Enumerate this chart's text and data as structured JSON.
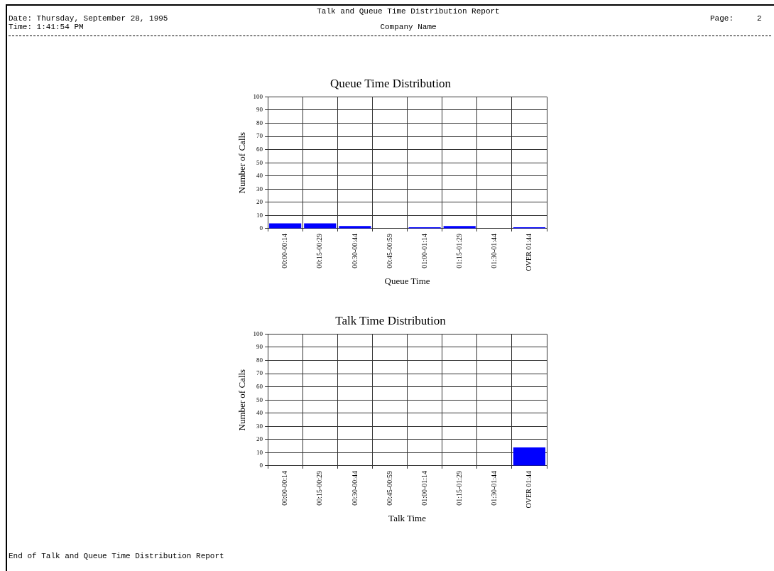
{
  "chart_data": [
    {
      "type": "other",
      "title": "Talk and Queue Time Distribution Report",
      "annotations": [
        "Date: Thursday, September 28, 1995",
        "Time: 1:41:54 PM",
        "Company Name",
        "Page:     2",
        "End of Talk and Queue Time Distribution Report"
      ]
    },
    {
      "type": "bar",
      "title": "Queue Time Distribution",
      "xlabel": "Queue Time",
      "ylabel": "Number of Calls",
      "categories": [
        "00:00-00:14",
        "00:15-00:29",
        "00:30-00:44",
        "00:45-00:59",
        "01:00-01:14",
        "01:15-01:29",
        "01:30-01:44",
        "OVER 01:44"
      ],
      "values": [
        4,
        4,
        2,
        0,
        1,
        2,
        0,
        1
      ],
      "color": "#0000ff",
      "ylim": [
        0,
        100
      ],
      "yticks": [
        0,
        10,
        20,
        30,
        40,
        50,
        60,
        70,
        80,
        90,
        100
      ],
      "grid": true
    },
    {
      "type": "bar",
      "title": "Talk Time Distribution",
      "xlabel": "Talk Time",
      "ylabel": "Number of Calls",
      "categories": [
        "00:00-00:14",
        "00:15-00:29",
        "00:30-00:44",
        "00:45-00:59",
        "01:00-01:14",
        "01:15-01:29",
        "01:30-01:44",
        "OVER 01:44"
      ],
      "values": [
        0,
        0,
        0,
        0,
        0,
        0,
        0,
        14
      ],
      "color": "#0000ff",
      "ylim": [
        0,
        100
      ],
      "yticks": [
        0,
        10,
        20,
        30,
        40,
        50,
        60,
        70,
        80,
        90,
        100
      ],
      "grid": true
    }
  ]
}
